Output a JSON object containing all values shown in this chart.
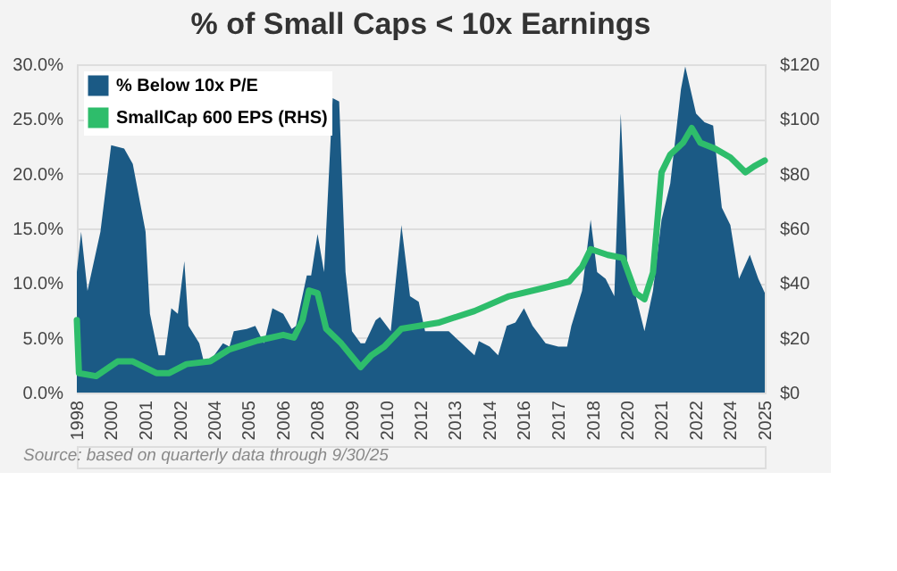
{
  "chart_data": {
    "type": "area",
    "title": "% of Small Caps < 10x Earnings",
    "annotations": [
      "Source: based on quarterly data through 9/30/25"
    ],
    "xlim": [
      "1998-11",
      "2025-07"
    ],
    "xticks": [
      {
        "value": "1998-11",
        "label": "1998"
      },
      {
        "value": "2000-03",
        "label": "2000"
      },
      {
        "value": "2001-07",
        "label": "2001"
      },
      {
        "value": "2002-11",
        "label": "2002"
      },
      {
        "value": "2004-03",
        "label": "2004"
      },
      {
        "value": "2005-07",
        "label": "2005"
      },
      {
        "value": "2006-11",
        "label": "2006"
      },
      {
        "value": "2008-03",
        "label": "2008"
      },
      {
        "value": "2009-07",
        "label": "2009"
      },
      {
        "value": "2010-11",
        "label": "2010"
      },
      {
        "value": "2012-03",
        "label": "2012"
      },
      {
        "value": "2013-07",
        "label": "2013"
      },
      {
        "value": "2014-11",
        "label": "2014"
      },
      {
        "value": "2016-03",
        "label": "2016"
      },
      {
        "value": "2017-07",
        "label": "2017"
      },
      {
        "value": "2018-11",
        "label": "2018"
      },
      {
        "value": "2020-03",
        "label": "2020"
      },
      {
        "value": "2021-07",
        "label": "2021"
      },
      {
        "value": "2022-11",
        "label": "2022"
      },
      {
        "value": "2024-03",
        "label": "2024"
      },
      {
        "value": "2025-07",
        "label": "2025"
      }
    ],
    "ylim": [
      0,
      30
    ],
    "yticks": [
      {
        "value": 0,
        "label": "0.0%"
      },
      {
        "value": 5,
        "label": "5.0%"
      },
      {
        "value": 10,
        "label": "10.0%"
      },
      {
        "value": 15,
        "label": "15.0%"
      },
      {
        "value": 20,
        "label": "20.0%"
      },
      {
        "value": 25,
        "label": "25.0%"
      },
      {
        "value": 30,
        "label": "30.0%"
      }
    ],
    "y2lim": [
      0,
      120
    ],
    "y2ticks": [
      {
        "value": 0,
        "label": "$0"
      },
      {
        "value": 20,
        "label": "$20"
      },
      {
        "value": 40,
        "label": "$40"
      },
      {
        "value": 60,
        "label": "$60"
      },
      {
        "value": 80,
        "label": "$80"
      },
      {
        "value": 100,
        "label": "$100"
      },
      {
        "value": 120,
        "label": "$120"
      }
    ],
    "grid": "y",
    "legend": "top left",
    "series": [
      {
        "name": "% Below 10x P/E",
        "color": "#1b5a85",
        "x": [
          "1998-11",
          "1999-01",
          "1999-04",
          "1999-10",
          "2000-03",
          "2000-09",
          "2001-01",
          "2001-07",
          "2001-09",
          "2002-01",
          "2002-04",
          "2002-07",
          "2002-10",
          "2003-01",
          "2003-03",
          "2003-08",
          "2003-10",
          "2004-01",
          "2004-07",
          "2004-10",
          "2004-12",
          "2005-06",
          "2005-10",
          "2006-02",
          "2006-06",
          "2006-11",
          "2007-03",
          "2007-05",
          "2007-10",
          "2007-12",
          "2008-03",
          "2008-06",
          "2008-10",
          "2009-01",
          "2009-04",
          "2009-07",
          "2009-11",
          "2010-01",
          "2010-06",
          "2010-08",
          "2011-01",
          "2011-06",
          "2011-10",
          "2012-02",
          "2012-05",
          "2012-11",
          "2013-04",
          "2013-10",
          "2014-04",
          "2014-06",
          "2014-11",
          "2015-03",
          "2015-07",
          "2015-11",
          "2016-03",
          "2016-07",
          "2017-01",
          "2017-07",
          "2017-11",
          "2018-01",
          "2018-06",
          "2018-10",
          "2019-01",
          "2019-05",
          "2019-09",
          "2019-12",
          "2020-03",
          "2020-07",
          "2020-11",
          "2021-03",
          "2021-07",
          "2021-11",
          "2022-04",
          "2022-06",
          "2022-11",
          "2023-03",
          "2023-07",
          "2023-11",
          "2024-03",
          "2024-07",
          "2024-12",
          "2025-04",
          "2025-07"
        ],
        "values": [
          11.0,
          14.7,
          9.3,
          14.7,
          22.6,
          22.3,
          20.9,
          14.7,
          7.2,
          3.4,
          3.4,
          7.7,
          7.2,
          12.0,
          6.1,
          4.5,
          2.9,
          2.9,
          4.5,
          4.2,
          5.6,
          5.8,
          6.1,
          4.5,
          7.7,
          7.2,
          5.8,
          6.1,
          10.7,
          10.7,
          14.5,
          11.0,
          26.9,
          26.6,
          11.0,
          5.6,
          4.5,
          4.5,
          6.6,
          6.9,
          5.6,
          15.3,
          8.8,
          8.3,
          5.6,
          5.6,
          5.6,
          4.5,
          3.4,
          4.7,
          4.2,
          3.4,
          6.1,
          6.4,
          7.7,
          6.1,
          4.5,
          4.2,
          4.2,
          6.1,
          9.3,
          15.8,
          11.0,
          10.4,
          8.8,
          25.5,
          12.0,
          8.8,
          5.6,
          9.3,
          15.8,
          19.1,
          27.7,
          29.8,
          25.5,
          24.7,
          24.4,
          16.9,
          15.3,
          10.4,
          12.6,
          10.4,
          9.1
        ]
      },
      {
        "name": "SmallCap 600 EPS (RHS)",
        "type": "line",
        "axis": "y2",
        "color": "#2ebd6b",
        "x": [
          "1998-11",
          "1998-12",
          "1999-08",
          "2000-06",
          "2001-01",
          "2001-12",
          "2002-06",
          "2003-02",
          "2004-01",
          "2004-10",
          "2005-11",
          "2006-11",
          "2007-04",
          "2007-08",
          "2007-11",
          "2008-03",
          "2008-07",
          "2009-02",
          "2009-11",
          "2010-04",
          "2010-10",
          "2011-06",
          "2012-11",
          "2014-04",
          "2015-08",
          "2017-01",
          "2017-12",
          "2018-06",
          "2018-10",
          "2019-06",
          "2020-01",
          "2020-07",
          "2020-11",
          "2021-03",
          "2021-07",
          "2021-11",
          "2022-05",
          "2022-09",
          "2023-01",
          "2023-08",
          "2024-03",
          "2024-10",
          "2025-02",
          "2025-07"
        ],
        "values": [
          26.5,
          7.1,
          6.0,
          11.4,
          11.4,
          7.1,
          7.1,
          10.4,
          11.4,
          15.8,
          19.0,
          21.1,
          20.1,
          26.5,
          37.3,
          36.3,
          23.3,
          17.9,
          9.3,
          13.6,
          16.8,
          23.3,
          25.5,
          29.8,
          35.2,
          38.4,
          40.6,
          46.0,
          52.4,
          50.3,
          49.2,
          36.3,
          34.1,
          43.8,
          80.5,
          87.0,
          91.3,
          96.7,
          91.3,
          89.1,
          85.9,
          80.5,
          82.7,
          84.8
        ]
      }
    ]
  }
}
